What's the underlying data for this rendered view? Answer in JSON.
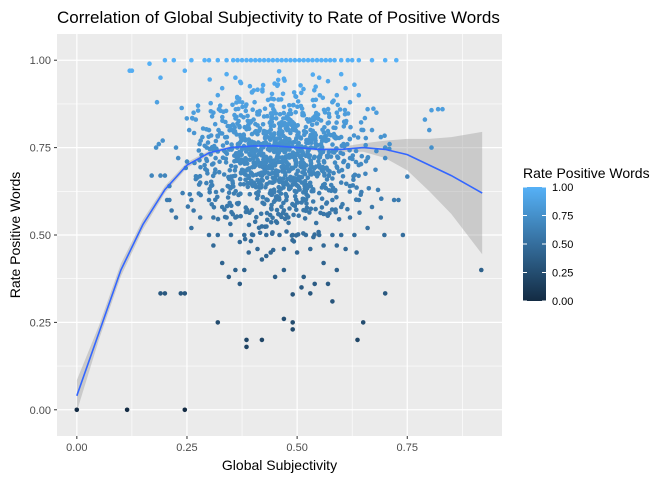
{
  "chart_data": {
    "type": "scatter",
    "title": "Correlation of Global Subjectivity to Rate of Positive Words",
    "xlabel": "Global Subjectivity",
    "ylabel": "Rate Positive Words",
    "xlim": [
      -0.045,
      0.965
    ],
    "ylim": [
      -0.075,
      1.075
    ],
    "x_ticks": [
      0.0,
      0.25,
      0.5,
      0.75
    ],
    "x_tick_labels": [
      "0.00",
      "0.25",
      "0.50",
      "0.75"
    ],
    "y_ticks": [
      0.0,
      0.25,
      0.5,
      0.75,
      1.0
    ],
    "y_tick_labels": [
      "0.00",
      "0.25",
      "0.50",
      "0.75",
      "1.00"
    ],
    "grid": true,
    "legend": {
      "title": "Rate Positive Words",
      "placement": "right",
      "ticks": [
        1.0,
        0.75,
        0.5,
        0.25,
        0.0
      ],
      "tick_labels": [
        "1.00",
        "0.75",
        "0.50",
        "0.25",
        "0.00"
      ],
      "color_low": "#132B43",
      "color_high": "#56B1F7"
    },
    "colors": {
      "panel_background": "#ebebeb",
      "grid": "#ffffff",
      "smooth_line": "#3366FF",
      "ribbon": "#999999"
    },
    "points": [
      [
        0.0,
        0.0
      ],
      [
        0.114,
        0.0
      ],
      [
        0.245,
        0.0
      ],
      [
        0.19,
        0.333
      ],
      [
        0.2,
        0.333
      ],
      [
        0.236,
        0.333
      ],
      [
        0.245,
        0.333
      ],
      [
        0.32,
        0.25
      ],
      [
        0.385,
        0.18
      ],
      [
        0.385,
        0.2
      ],
      [
        0.42,
        0.2
      ],
      [
        0.47,
        0.26
      ],
      [
        0.49,
        0.25
      ],
      [
        0.49,
        0.23
      ],
      [
        0.53,
        0.333
      ],
      [
        0.58,
        0.31
      ],
      [
        0.637,
        0.2
      ],
      [
        0.65,
        0.25
      ],
      [
        0.918,
        0.4
      ],
      [
        0.698,
        0.5
      ],
      [
        0.635,
        0.45
      ],
      [
        0.72,
        0.6
      ],
      [
        0.73,
        0.6
      ],
      [
        0.74,
        0.5
      ],
      [
        0.75,
        0.667
      ],
      [
        0.7,
        0.333
      ],
      [
        0.12,
        0.97
      ],
      [
        0.125,
        0.97
      ],
      [
        0.165,
        0.99
      ],
      [
        0.19,
        0.95
      ],
      [
        0.182,
        0.88
      ],
      [
        0.245,
        0.97
      ],
      [
        0.79,
        0.83
      ],
      [
        0.8,
        0.8
      ],
      [
        0.805,
        0.857
      ],
      [
        0.82,
        0.86
      ],
      [
        0.83,
        0.86
      ],
      [
        0.805,
        0.75
      ],
      [
        0.2,
        1.0
      ],
      [
        0.22,
        1.0
      ],
      [
        0.26,
        1.0
      ],
      [
        0.29,
        1.0
      ],
      [
        0.3,
        1.0
      ],
      [
        0.32,
        1.0
      ],
      [
        0.34,
        1.0
      ],
      [
        0.355,
        1.0
      ],
      [
        0.365,
        1.0
      ],
      [
        0.375,
        1.0
      ],
      [
        0.385,
        1.0
      ],
      [
        0.395,
        1.0
      ],
      [
        0.405,
        1.0
      ],
      [
        0.415,
        1.0
      ],
      [
        0.425,
        1.0
      ],
      [
        0.435,
        1.0
      ],
      [
        0.445,
        1.0
      ],
      [
        0.455,
        1.0
      ],
      [
        0.465,
        1.0
      ],
      [
        0.475,
        1.0
      ],
      [
        0.485,
        1.0
      ],
      [
        0.495,
        1.0
      ],
      [
        0.505,
        1.0
      ],
      [
        0.515,
        1.0
      ],
      [
        0.525,
        1.0
      ],
      [
        0.535,
        1.0
      ],
      [
        0.545,
        1.0
      ],
      [
        0.555,
        1.0
      ],
      [
        0.565,
        1.0
      ],
      [
        0.575,
        1.0
      ],
      [
        0.585,
        1.0
      ],
      [
        0.6,
        1.0
      ],
      [
        0.615,
        1.0
      ],
      [
        0.625,
        1.0
      ],
      [
        0.64,
        1.0
      ],
      [
        0.67,
        1.0
      ],
      [
        0.7,
        1.0
      ],
      [
        0.725,
        1.0
      ],
      [
        0.18,
        0.75
      ],
      [
        0.186,
        0.76
      ],
      [
        0.195,
        0.77
      ],
      [
        0.17,
        0.67
      ],
      [
        0.19,
        0.67
      ],
      [
        0.2,
        0.67
      ],
      [
        0.205,
        0.6
      ],
      [
        0.21,
        0.6
      ],
      [
        0.215,
        0.57
      ],
      [
        0.21,
        0.64
      ],
      [
        0.225,
        0.55
      ],
      [
        0.23,
        0.72
      ],
      [
        0.24,
        0.62
      ],
      [
        0.25,
        0.71
      ],
      [
        0.26,
        0.6
      ],
      [
        0.27,
        0.66
      ],
      [
        0.28,
        0.55
      ],
      [
        0.26,
        0.52
      ],
      [
        0.3,
        0.5
      ],
      [
        0.31,
        0.47
      ],
      [
        0.33,
        0.42
      ],
      [
        0.345,
        0.38
      ],
      [
        0.36,
        0.4
      ],
      [
        0.37,
        0.36
      ],
      [
        0.38,
        0.4
      ],
      [
        0.42,
        0.43
      ],
      [
        0.43,
        0.44
      ],
      [
        0.45,
        0.38
      ],
      [
        0.47,
        0.4
      ],
      [
        0.49,
        0.33
      ],
      [
        0.51,
        0.35
      ],
      [
        0.515,
        0.38
      ],
      [
        0.54,
        0.36
      ],
      [
        0.56,
        0.42
      ],
      [
        0.57,
        0.36
      ],
      [
        0.59,
        0.4
      ],
      [
        0.61,
        0.46
      ],
      [
        0.63,
        0.5
      ],
      [
        0.66,
        0.52
      ],
      [
        0.67,
        0.58
      ],
      [
        0.69,
        0.55
      ],
      [
        0.255,
        0.8
      ],
      [
        0.265,
        0.85
      ],
      [
        0.275,
        0.87
      ],
      [
        0.285,
        0.78
      ],
      [
        0.27,
        0.83
      ],
      [
        0.68,
        0.74
      ],
      [
        0.69,
        0.78
      ],
      [
        0.7,
        0.75
      ],
      [
        0.71,
        0.76
      ],
      [
        0.67,
        0.8
      ],
      [
        0.66,
        0.86
      ],
      [
        0.64,
        0.9
      ],
      [
        0.62,
        0.88
      ],
      [
        0.63,
        0.93
      ],
      [
        0.65,
        0.8
      ],
      [
        0.68,
        0.85
      ],
      [
        0.7,
        0.72
      ],
      [
        0.66,
        0.72
      ],
      [
        0.64,
        0.7
      ],
      [
        0.62,
        0.64
      ],
      [
        0.64,
        0.6
      ],
      [
        0.58,
        0.88
      ],
      [
        0.57,
        0.94
      ],
      [
        0.55,
        0.95
      ],
      [
        0.6,
        0.96
      ],
      [
        0.61,
        0.92
      ],
      [
        0.59,
        0.9
      ],
      [
        0.36,
        0.95
      ],
      [
        0.34,
        0.96
      ],
      [
        0.33,
        0.92
      ],
      [
        0.32,
        0.9
      ],
      [
        0.31,
        0.85
      ],
      [
        0.3,
        0.8
      ],
      [
        0.295,
        0.75
      ],
      [
        0.29,
        0.7
      ],
      [
        0.28,
        0.65
      ],
      [
        0.3,
        0.6
      ],
      [
        0.31,
        0.55
      ],
      [
        0.32,
        0.5
      ],
      [
        0.33,
        0.58
      ],
      [
        0.34,
        0.55
      ],
      [
        0.35,
        0.5
      ],
      [
        0.36,
        0.55
      ],
      [
        0.37,
        0.48
      ],
      [
        0.38,
        0.5
      ],
      [
        0.39,
        0.45
      ],
      [
        0.4,
        0.5
      ],
      [
        0.41,
        0.46
      ],
      [
        0.43,
        0.5
      ],
      [
        0.44,
        0.45
      ],
      [
        0.46,
        0.5
      ],
      [
        0.47,
        0.46
      ],
      [
        0.49,
        0.5
      ],
      [
        0.5,
        0.45
      ],
      [
        0.52,
        0.5
      ],
      [
        0.53,
        0.46
      ],
      [
        0.55,
        0.5
      ],
      [
        0.56,
        0.47
      ],
      [
        0.58,
        0.5
      ],
      [
        0.59,
        0.47
      ],
      [
        0.6,
        0.5
      ],
      [
        0.62,
        0.55
      ],
      [
        0.6,
        0.58
      ],
      [
        0.58,
        0.6
      ],
      [
        0.56,
        0.56
      ],
      [
        0.55,
        0.62
      ],
      [
        0.6,
        0.65
      ],
      [
        0.62,
        0.72
      ],
      [
        0.6,
        0.78
      ],
      [
        0.61,
        0.82
      ],
      [
        0.59,
        0.85
      ]
    ],
    "dense_cluster": {
      "x_center": 0.46,
      "x_spread": 0.085,
      "y_center": 0.72,
      "y_spread": 0.095,
      "count": 1100
    },
    "smooth": [
      [
        0.0,
        0.04
      ],
      [
        0.05,
        0.22
      ],
      [
        0.1,
        0.4
      ],
      [
        0.15,
        0.53
      ],
      [
        0.2,
        0.63
      ],
      [
        0.25,
        0.7
      ],
      [
        0.3,
        0.735
      ],
      [
        0.35,
        0.75
      ],
      [
        0.4,
        0.755
      ],
      [
        0.45,
        0.755
      ],
      [
        0.5,
        0.75
      ],
      [
        0.55,
        0.745
      ],
      [
        0.6,
        0.745
      ],
      [
        0.65,
        0.75
      ],
      [
        0.7,
        0.745
      ],
      [
        0.75,
        0.73
      ],
      [
        0.8,
        0.7
      ],
      [
        0.85,
        0.67
      ],
      [
        0.92,
        0.62
      ]
    ],
    "smooth_se": [
      0.045,
      0.02,
      0.018,
      0.014,
      0.01,
      0.008,
      0.006,
      0.005,
      0.004,
      0.004,
      0.004,
      0.005,
      0.007,
      0.012,
      0.025,
      0.045,
      0.075,
      0.11,
      0.175
    ]
  }
}
